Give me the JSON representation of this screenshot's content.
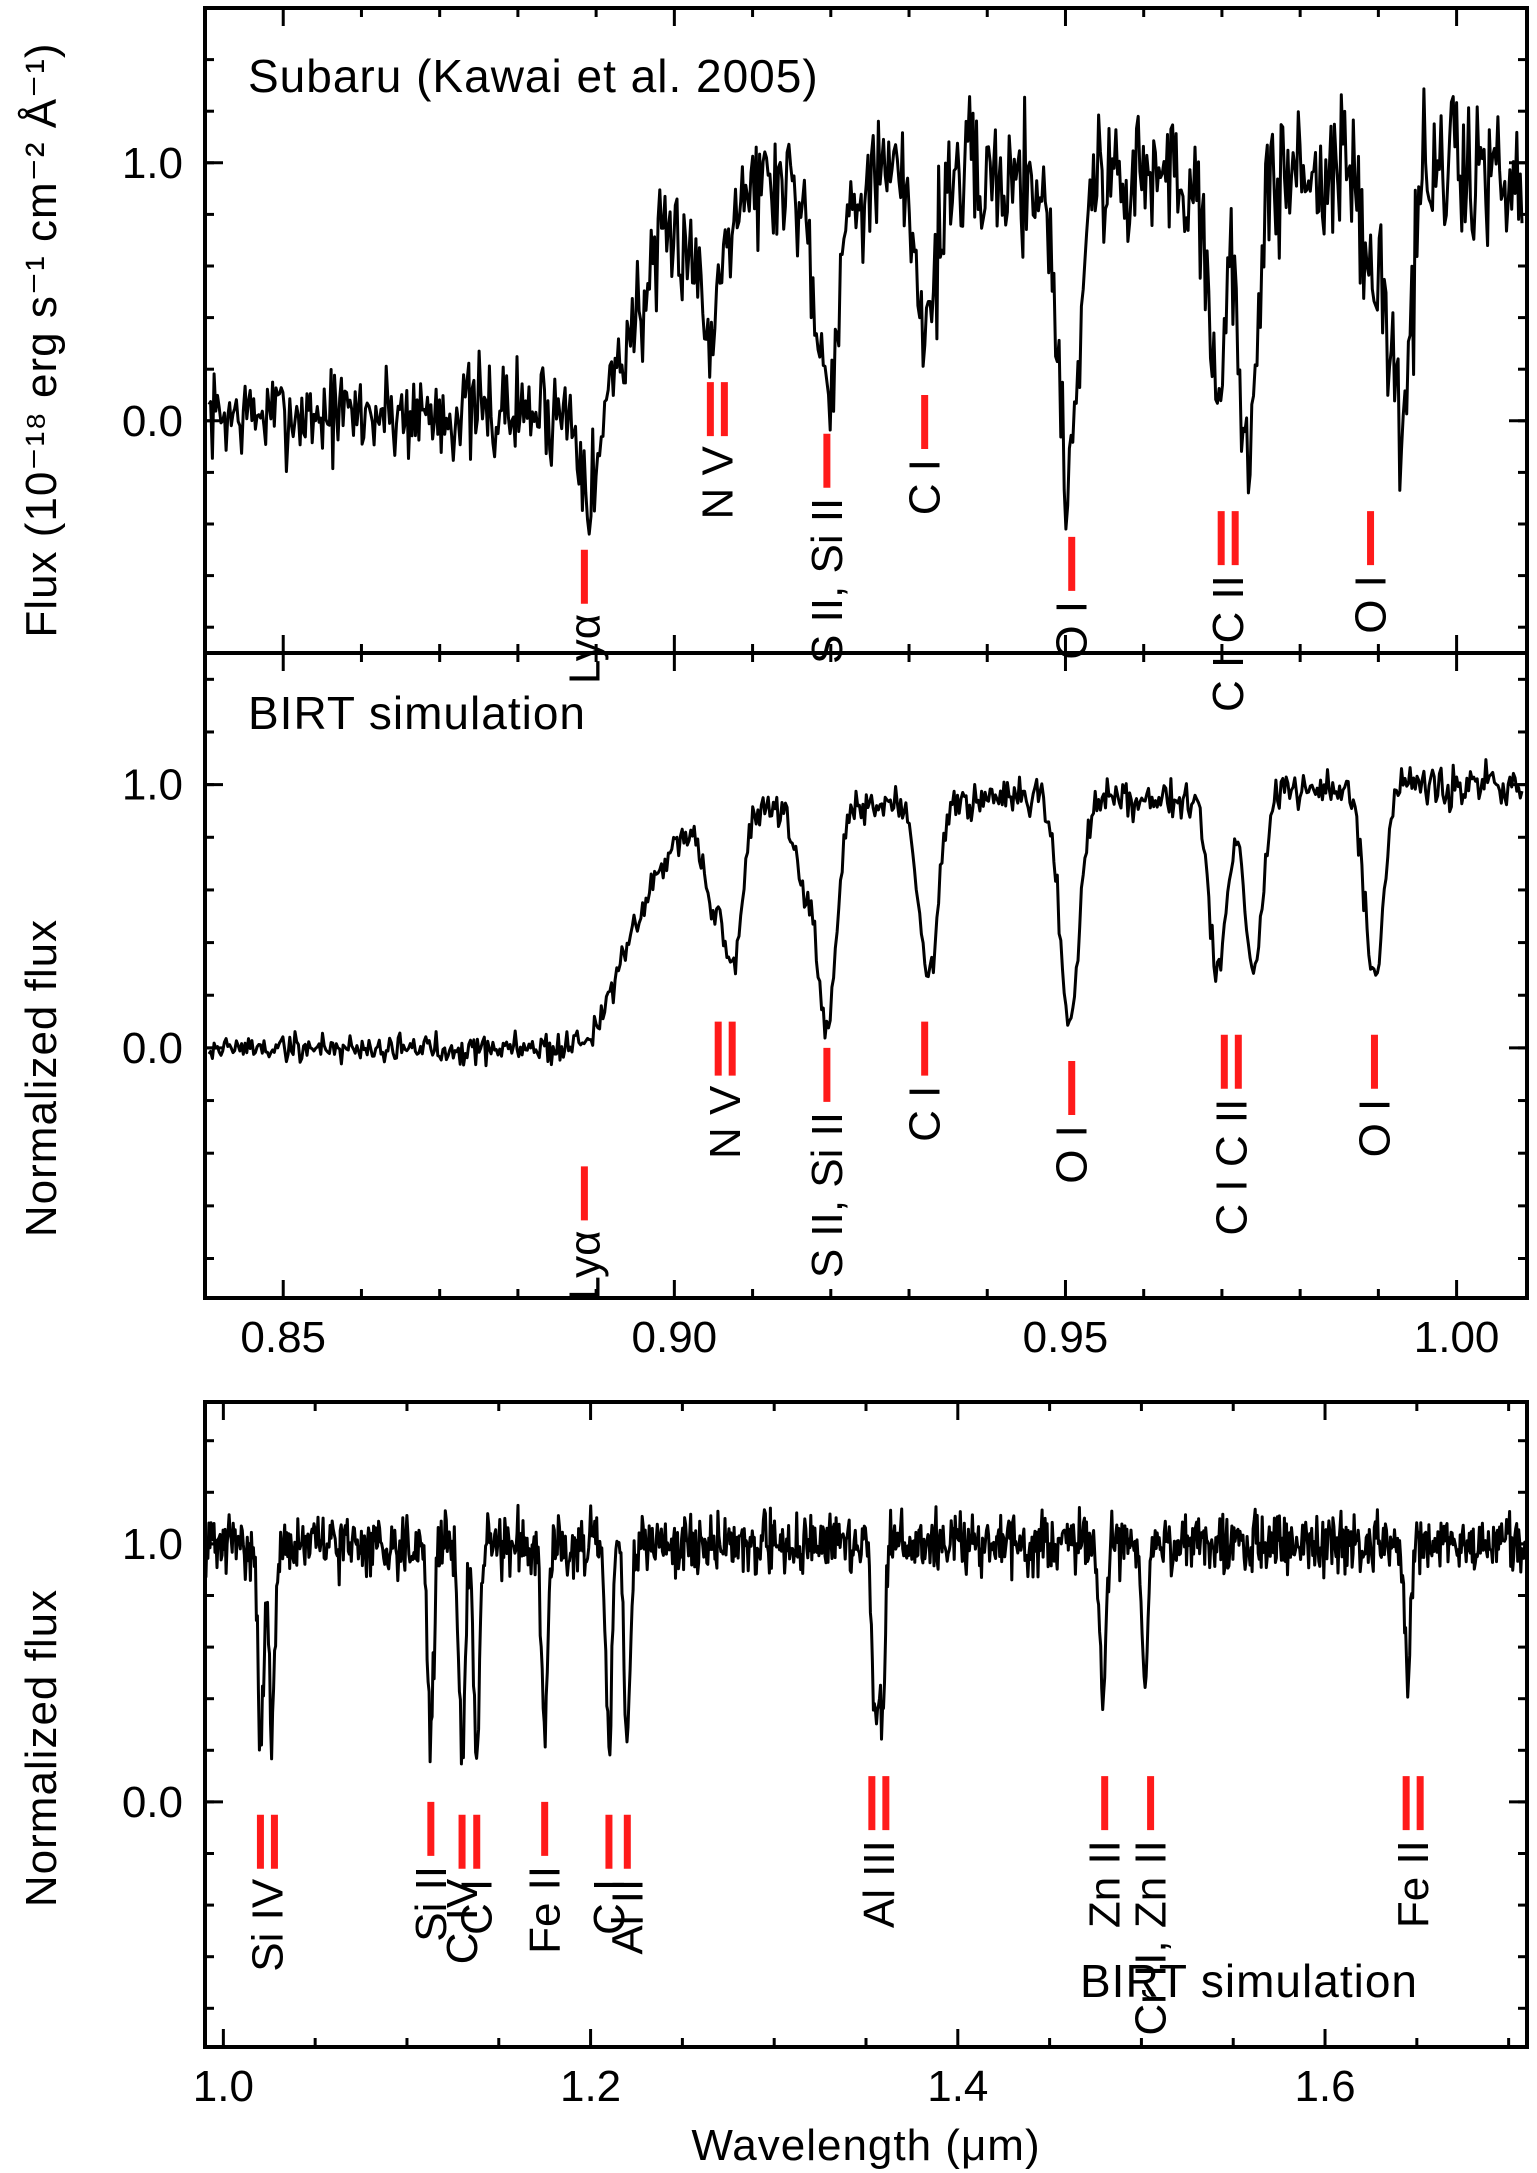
{
  "colors": {
    "spectrum": "#000000",
    "line_marker": "#ff1a1a",
    "axes": "#000000"
  },
  "ylabel_top": "Flux (10⁻¹⁸ erg s⁻¹ cm⁻² Å⁻¹)",
  "ylabel_norm": "Normalized flux",
  "xlabel": "Wavelength (μm)",
  "chart_data": [
    {
      "type": "line",
      "title": "Subaru (Kawai et al. 2005)",
      "xlabel": "",
      "ylabel": "Flux (10⁻¹⁸ erg s⁻¹ cm⁻² Å⁻¹)",
      "xlim": [
        0.84,
        1.009
      ],
      "ylim": [
        -0.9,
        1.6
      ],
      "yticks": [
        "0.0",
        "1.0"
      ],
      "yticks_values": [
        0.0,
        1.0
      ],
      "continuum": {
        "x": [
          0.84,
          0.886,
          0.89,
          0.894,
          0.898,
          0.904,
          0.91,
          1.009
        ],
        "y": [
          0.02,
          0.04,
          0.1,
          0.32,
          0.62,
          0.82,
          0.92,
          0.98
        ]
      },
      "absorption_lines": [
        {
          "x": 0.8895,
          "depth": 0.35,
          "width": 0.0012
        },
        {
          "x": 0.9045,
          "depth": 0.5,
          "width": 0.0012
        },
        {
          "x": 0.9195,
          "depth": 0.75,
          "width": 0.0015
        },
        {
          "x": 0.9322,
          "depth": 0.55,
          "width": 0.0012
        },
        {
          "x": 0.9503,
          "depth": 1.15,
          "width": 0.0013
        },
        {
          "x": 0.9695,
          "depth": 0.75,
          "width": 0.0012
        },
        {
          "x": 0.9735,
          "depth": 1.05,
          "width": 0.0012
        },
        {
          "x": 0.9895,
          "depth": 0.5,
          "width": 0.0012
        },
        {
          "x": 0.993,
          "depth": 0.95,
          "width": 0.0012
        }
      ],
      "noise": {
        "amplitude": [
          0.18,
          0.38
        ],
        "seed": 7
      },
      "line_labels": [
        {
          "x": 0.8885,
          "text": "Lyα",
          "ticks": 1,
          "y": -0.5
        },
        {
          "x": 0.9055,
          "text": "N V",
          "ticks": 2,
          "y": 0.15
        },
        {
          "x": 0.9195,
          "text": "S II, Si II",
          "ticks": 1,
          "y": -0.05
        },
        {
          "x": 0.932,
          "text": "C I",
          "ticks": 1,
          "y": 0.1
        },
        {
          "x": 0.9508,
          "text": "O I",
          "ticks": 1,
          "y": -0.45
        },
        {
          "x": 0.9708,
          "text": "C I C II",
          "ticks": 2,
          "y": -0.35
        },
        {
          "x": 0.989,
          "text": "O I",
          "ticks": 1,
          "y": -0.35
        }
      ]
    },
    {
      "type": "line",
      "title": "BIRT simulation",
      "xlabel": "",
      "ylabel": "Normalized flux",
      "xlim": [
        0.84,
        1.009
      ],
      "ylim": [
        -0.95,
        1.5
      ],
      "xticks": [
        "0.85",
        "0.90",
        "0.95",
        "1.00"
      ],
      "xticks_values": [
        0.85,
        0.9,
        0.95,
        1.0
      ],
      "yticks": [
        "0.0",
        "1.0"
      ],
      "yticks_values": [
        0.0,
        1.0
      ],
      "continuum": {
        "x": [
          0.84,
          0.886,
          0.8895,
          0.893,
          0.897,
          0.9,
          0.904,
          1.009
        ],
        "y": [
          0.0,
          0.0,
          0.05,
          0.3,
          0.6,
          0.78,
          0.9,
          1.0
        ]
      },
      "absorption_lines": [
        {
          "x": 0.9048,
          "depth": 0.35,
          "width": 0.0011
        },
        {
          "x": 0.9075,
          "depth": 0.6,
          "width": 0.0011
        },
        {
          "x": 0.9165,
          "depth": 0.3,
          "width": 0.0011
        },
        {
          "x": 0.9195,
          "depth": 0.85,
          "width": 0.0012
        },
        {
          "x": 0.9325,
          "depth": 0.65,
          "width": 0.0012
        },
        {
          "x": 0.9505,
          "depth": 0.85,
          "width": 0.0012
        },
        {
          "x": 0.9695,
          "depth": 0.68,
          "width": 0.0011
        },
        {
          "x": 0.974,
          "depth": 0.68,
          "width": 0.0011
        },
        {
          "x": 0.9895,
          "depth": 0.72,
          "width": 0.0012
        }
      ],
      "noise": {
        "amplitude": [
          0.06,
          0.09
        ],
        "seed": 19
      },
      "line_labels": [
        {
          "x": 0.8885,
          "text": "Lyα",
          "ticks": 1,
          "y": -0.45
        },
        {
          "x": 0.9065,
          "text": "N V",
          "ticks": 2,
          "y": 0.1
        },
        {
          "x": 0.9195,
          "text": "S II, Si II",
          "ticks": 1,
          "y": 0.0
        },
        {
          "x": 0.932,
          "text": "C I",
          "ticks": 1,
          "y": 0.1
        },
        {
          "x": 0.9508,
          "text": "O I",
          "ticks": 1,
          "y": -0.05
        },
        {
          "x": 0.9712,
          "text": "C I C II",
          "ticks": 2,
          "y": 0.05
        },
        {
          "x": 0.9895,
          "text": "O I",
          "ticks": 1,
          "y": 0.05
        }
      ]
    },
    {
      "type": "line",
      "title": "BIRT simulation",
      "xlabel": "Wavelength (μm)",
      "ylabel": "Normalized flux",
      "xlim": [
        0.99,
        1.71
      ],
      "ylim": [
        -0.95,
        1.55
      ],
      "xticks": [
        "1.0",
        "1.2",
        "1.4",
        "1.6"
      ],
      "xticks_values": [
        1.0,
        1.2,
        1.4,
        1.6
      ],
      "yticks": [
        "0.0",
        "1.0"
      ],
      "yticks_values": [
        0.0,
        1.0
      ],
      "continuum": {
        "x": [
          0.99,
          1.71
        ],
        "y": [
          1.0,
          1.0
        ]
      },
      "absorption_lines": [
        {
          "x": 1.0205,
          "depth": 0.75,
          "width": 0.0016
        },
        {
          "x": 1.0265,
          "depth": 0.75,
          "width": 0.0016
        },
        {
          "x": 1.113,
          "depth": 0.75,
          "width": 0.0016
        },
        {
          "x": 1.13,
          "depth": 0.85,
          "width": 0.0016
        },
        {
          "x": 1.138,
          "depth": 0.85,
          "width": 0.0016
        },
        {
          "x": 1.175,
          "depth": 0.7,
          "width": 0.0016
        },
        {
          "x": 1.21,
          "depth": 0.85,
          "width": 0.0016
        },
        {
          "x": 1.22,
          "depth": 0.8,
          "width": 0.0016
        },
        {
          "x": 1.355,
          "depth": 0.65,
          "width": 0.0016
        },
        {
          "x": 1.359,
          "depth": 0.6,
          "width": 0.0016
        },
        {
          "x": 1.479,
          "depth": 0.6,
          "width": 0.0016
        },
        {
          "x": 1.502,
          "depth": 0.5,
          "width": 0.0016
        },
        {
          "x": 1.645,
          "depth": 0.5,
          "width": 0.0016
        }
      ],
      "noise": {
        "amplitude": [
          0.13,
          0.13
        ],
        "seed": 31
      },
      "line_labels": [
        {
          "x": 1.024,
          "text": "Si IV",
          "ticks": 2,
          "y": -0.05
        },
        {
          "x": 1.113,
          "text": "Si II",
          "ticks": 1,
          "y": 0.0
        },
        {
          "x": 1.13,
          "text": "C IV",
          "ticks": 1,
          "y": -0.05
        },
        {
          "x": 1.138,
          "text": "C I",
          "ticks": 1,
          "y": -0.05
        },
        {
          "x": 1.175,
          "text": "Fe II",
          "ticks": 1,
          "y": 0.0
        },
        {
          "x": 1.21,
          "text": "C I",
          "ticks": 1,
          "y": -0.05
        },
        {
          "x": 1.22,
          "text": "Al II",
          "ticks": 1,
          "y": -0.05
        },
        {
          "x": 1.357,
          "text": "Al III",
          "ticks": 2,
          "y": 0.1
        },
        {
          "x": 1.48,
          "text": "Zn II",
          "ticks": 1,
          "y": 0.1
        },
        {
          "x": 1.505,
          "text": "Cr II, Zn II",
          "ticks": 1,
          "y": 0.1
        },
        {
          "x": 1.648,
          "text": "Fe II",
          "ticks": 2,
          "y": 0.1
        }
      ]
    }
  ]
}
